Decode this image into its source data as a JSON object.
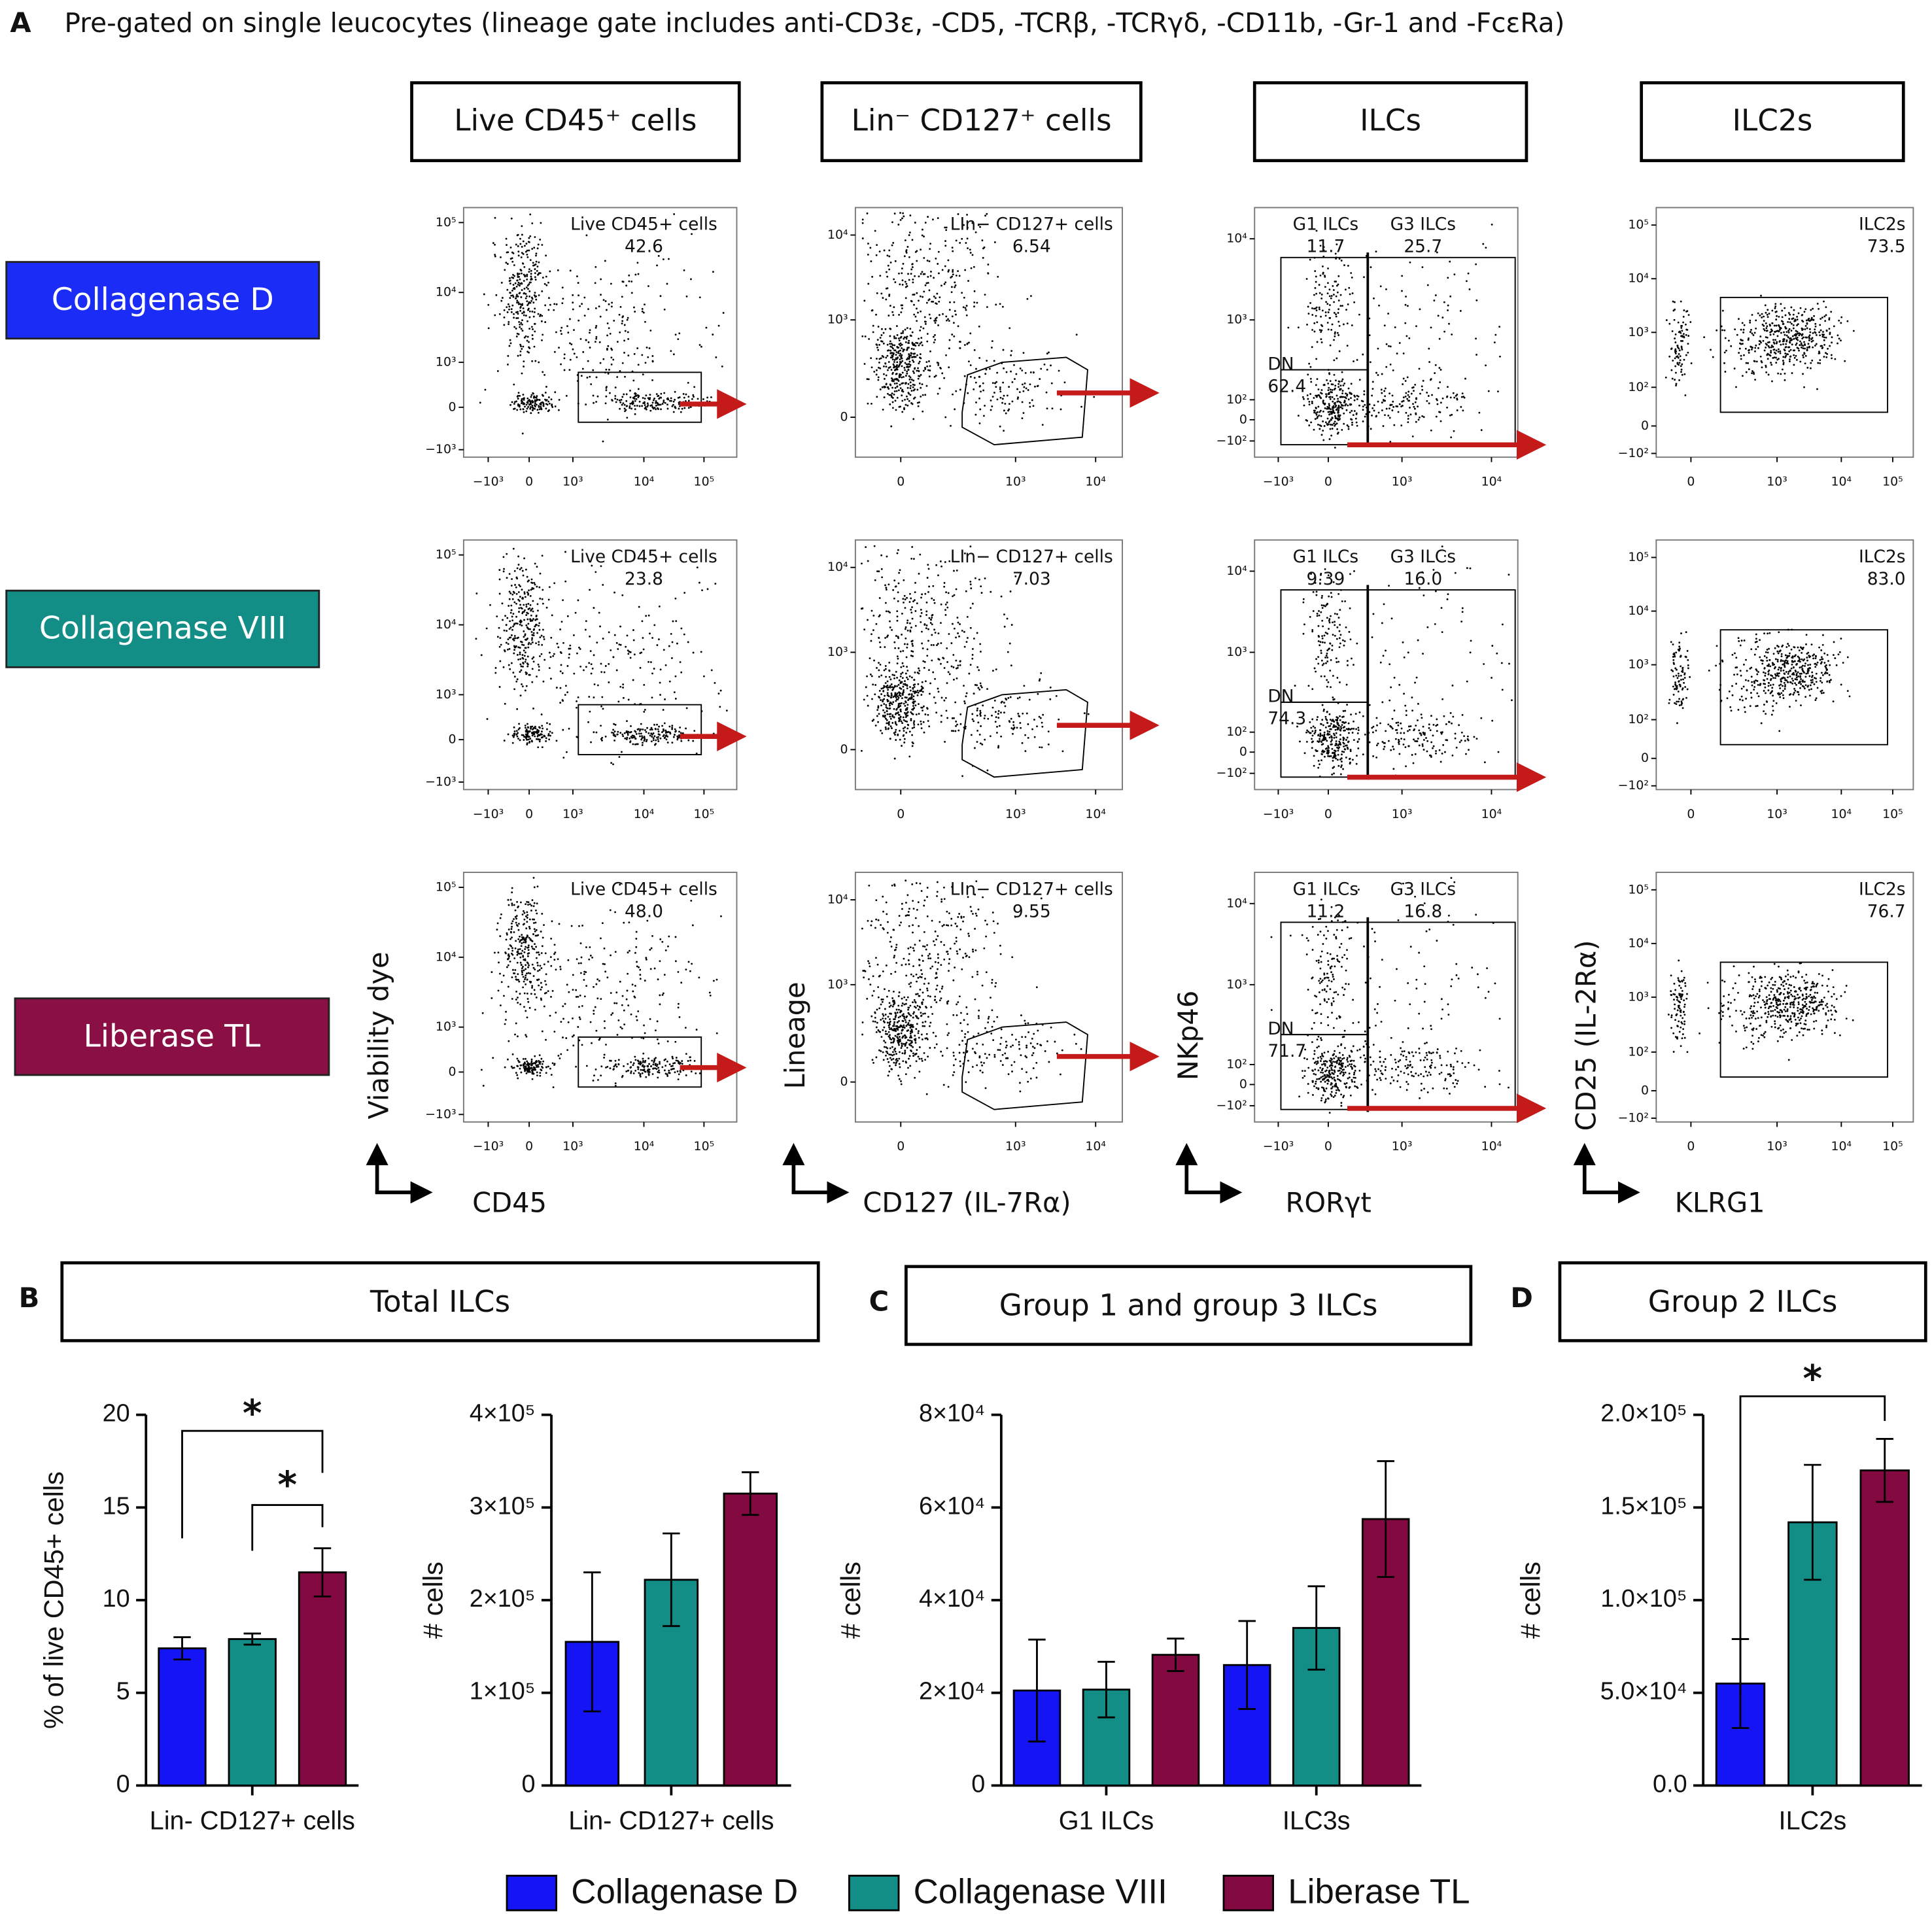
{
  "panel_a": {
    "label": "A",
    "title": "Pre-gated on single leucocytes (lineage gate includes anti-CD3ε, -CD5, -TCRβ, -TCRγδ, -CD11b, -Gr-1 and -FcεRa)",
    "columns": [
      {
        "header": "Live CD45⁺ cells",
        "y_label": "Viability dye",
        "x_label": "CD45",
        "yticks": [
          "10⁵",
          "10⁴",
          "10³",
          "0",
          "−10³"
        ],
        "xticks": [
          "−10³",
          "0",
          "10³",
          "10⁴",
          "10⁵"
        ]
      },
      {
        "header": "Lin⁻ CD127⁺ cells",
        "y_label": "Lineage",
        "x_label": "CD127 (IL-7Rα)",
        "yticks": [
          "10⁴",
          "10³",
          "0"
        ],
        "xticks": [
          "0",
          "10³",
          "10⁴"
        ]
      },
      {
        "header": "ILCs",
        "y_label": "NKp46",
        "x_label": "RORγt",
        "yticks": [
          "10⁴",
          "10³",
          "10²",
          "0",
          "−10²"
        ],
        "xticks": [
          "−10³",
          "0",
          "10³",
          "10⁴"
        ]
      },
      {
        "header": "ILC2s",
        "y_label": "CD25 (IL-2Rα)",
        "x_label": "KLRG1",
        "yticks": [
          "10⁵",
          "10⁴",
          "10³",
          "10²",
          "0",
          "−10²"
        ],
        "xticks": [
          "0",
          "10³",
          "10⁴",
          "10⁵"
        ]
      }
    ],
    "rows": [
      {
        "label": "Collagenase D",
        "color": "#1a2cf5",
        "plots": [
          {
            "gates": [
              {
                "name": "Live CD45+ cells",
                "value": "42.6"
              }
            ]
          },
          {
            "gates": [
              {
                "name": "LIn− CD127+ cells",
                "value": "6.54"
              }
            ]
          },
          {
            "gates": [
              {
                "name": "G1 ILCs",
                "value": "11.7"
              },
              {
                "name": "G3 ILCs",
                "value": "25.7"
              },
              {
                "name": "DN",
                "value": "62.4"
              }
            ]
          },
          {
            "gates": [
              {
                "name": "ILC2s",
                "value": "73.5"
              }
            ]
          }
        ]
      },
      {
        "label": "Collagenase VIII",
        "color": "#138e86",
        "plots": [
          {
            "gates": [
              {
                "name": "Live CD45+ cells",
                "value": "23.8"
              }
            ]
          },
          {
            "gates": [
              {
                "name": "LIn− CD127+ cells",
                "value": "7.03"
              }
            ]
          },
          {
            "gates": [
              {
                "name": "G1 ILCs",
                "value": "9.39"
              },
              {
                "name": "G3 ILCs",
                "value": "16.0"
              },
              {
                "name": "DN",
                "value": "74.3"
              }
            ]
          },
          {
            "gates": [
              {
                "name": "ILC2s",
                "value": "83.0"
              }
            ]
          }
        ]
      },
      {
        "label": "Liberase TL",
        "color": "#8a0f45",
        "plots": [
          {
            "gates": [
              {
                "name": "Live CD45+ cells",
                "value": "48.0"
              }
            ]
          },
          {
            "gates": [
              {
                "name": "LIn− CD127+ cells",
                "value": "9.55"
              }
            ]
          },
          {
            "gates": [
              {
                "name": "G1 ILCs",
                "value": "11.2"
              },
              {
                "name": "G3 ILCs",
                "value": "16.8"
              },
              {
                "name": "DN",
                "value": "71.7"
              }
            ]
          },
          {
            "gates": [
              {
                "name": "ILC2s",
                "value": "76.7"
              }
            ]
          }
        ]
      }
    ]
  },
  "sections": [
    {
      "label": "B",
      "title": "Total ILCs"
    },
    {
      "label": "C",
      "title": "Group 1 and group 3 ILCs"
    },
    {
      "label": "D",
      "title": "Group 2 ILCs"
    }
  ],
  "chart_data": [
    {
      "type": "bar",
      "y_label": "% of live CD45+ cells",
      "categories": [
        "Lin- CD127+ cells"
      ],
      "ylim": [
        0,
        20
      ],
      "yticks": [
        0,
        5,
        10,
        15,
        20
      ],
      "annotations": [
        "*",
        "*"
      ],
      "series": [
        {
          "name": "Collagenase D",
          "color": "#1414f5",
          "values": [
            7.4
          ],
          "errors": [
            0.6
          ]
        },
        {
          "name": "Collagenase VIII",
          "color": "#138e86",
          "values": [
            7.9
          ],
          "errors": [
            0.3
          ]
        },
        {
          "name": "Liberase TL",
          "color": "#820a40",
          "values": [
            11.5
          ],
          "errors": [
            1.3
          ]
        }
      ]
    },
    {
      "type": "bar",
      "y_label": "# cells",
      "categories": [
        "Lin- CD127+ cells"
      ],
      "ylim": [
        0,
        400000
      ],
      "yticks": [
        0,
        {
          "value": 100000,
          "label": "1×10⁵"
        },
        {
          "value": 200000,
          "label": "2×10⁵"
        },
        {
          "value": 300000,
          "label": "3×10⁵"
        },
        {
          "value": 400000,
          "label": "4×10⁵"
        }
      ],
      "series": [
        {
          "color": "#1414f5",
          "values": [
            155000
          ],
          "errors": [
            75000
          ]
        },
        {
          "color": "#138e86",
          "values": [
            222000
          ],
          "errors": [
            50000
          ]
        },
        {
          "color": "#820a40",
          "values": [
            315000
          ],
          "errors": [
            23000
          ]
        }
      ]
    },
    {
      "type": "bar",
      "y_label": "# cells",
      "categories": [
        "G1 ILCs",
        "ILC3s"
      ],
      "ylim": [
        0,
        80000
      ],
      "yticks": [
        0,
        {
          "value": 20000,
          "label": "2×10⁴"
        },
        {
          "value": 40000,
          "label": "4×10⁴"
        },
        {
          "value": 60000,
          "label": "6×10⁴"
        },
        {
          "value": 80000,
          "label": "8×10⁴"
        }
      ],
      "series": [
        {
          "color": "#1414f5",
          "values": [
            20500,
            26000
          ],
          "errors": [
            11000,
            9500
          ]
        },
        {
          "color": "#138e86",
          "values": [
            20700,
            34000
          ],
          "errors": [
            6000,
            9000
          ]
        },
        {
          "color": "#820a40",
          "values": [
            28200,
            57500
          ],
          "errors": [
            3500,
            12500
          ]
        }
      ]
    },
    {
      "type": "bar",
      "y_label": "# cells",
      "categories": [
        "ILC2s"
      ],
      "ylim": [
        0,
        200000
      ],
      "yticks": [
        {
          "value": 0,
          "label": "0.0"
        },
        {
          "value": 50000,
          "label": "5.0×10⁴"
        },
        {
          "value": 100000,
          "label": "1.0×10⁵"
        },
        {
          "value": 150000,
          "label": "1.5×10⁵"
        },
        {
          "value": 200000,
          "label": "2.0×10⁵"
        }
      ],
      "annotations": [
        "*"
      ],
      "series": [
        {
          "color": "#1414f5",
          "values": [
            55000
          ],
          "errors": [
            24000
          ]
        },
        {
          "color": "#138e86",
          "values": [
            142000
          ],
          "errors": [
            31000
          ]
        },
        {
          "color": "#820a40",
          "values": [
            170000
          ],
          "errors": [
            17000
          ]
        }
      ]
    }
  ]
}
